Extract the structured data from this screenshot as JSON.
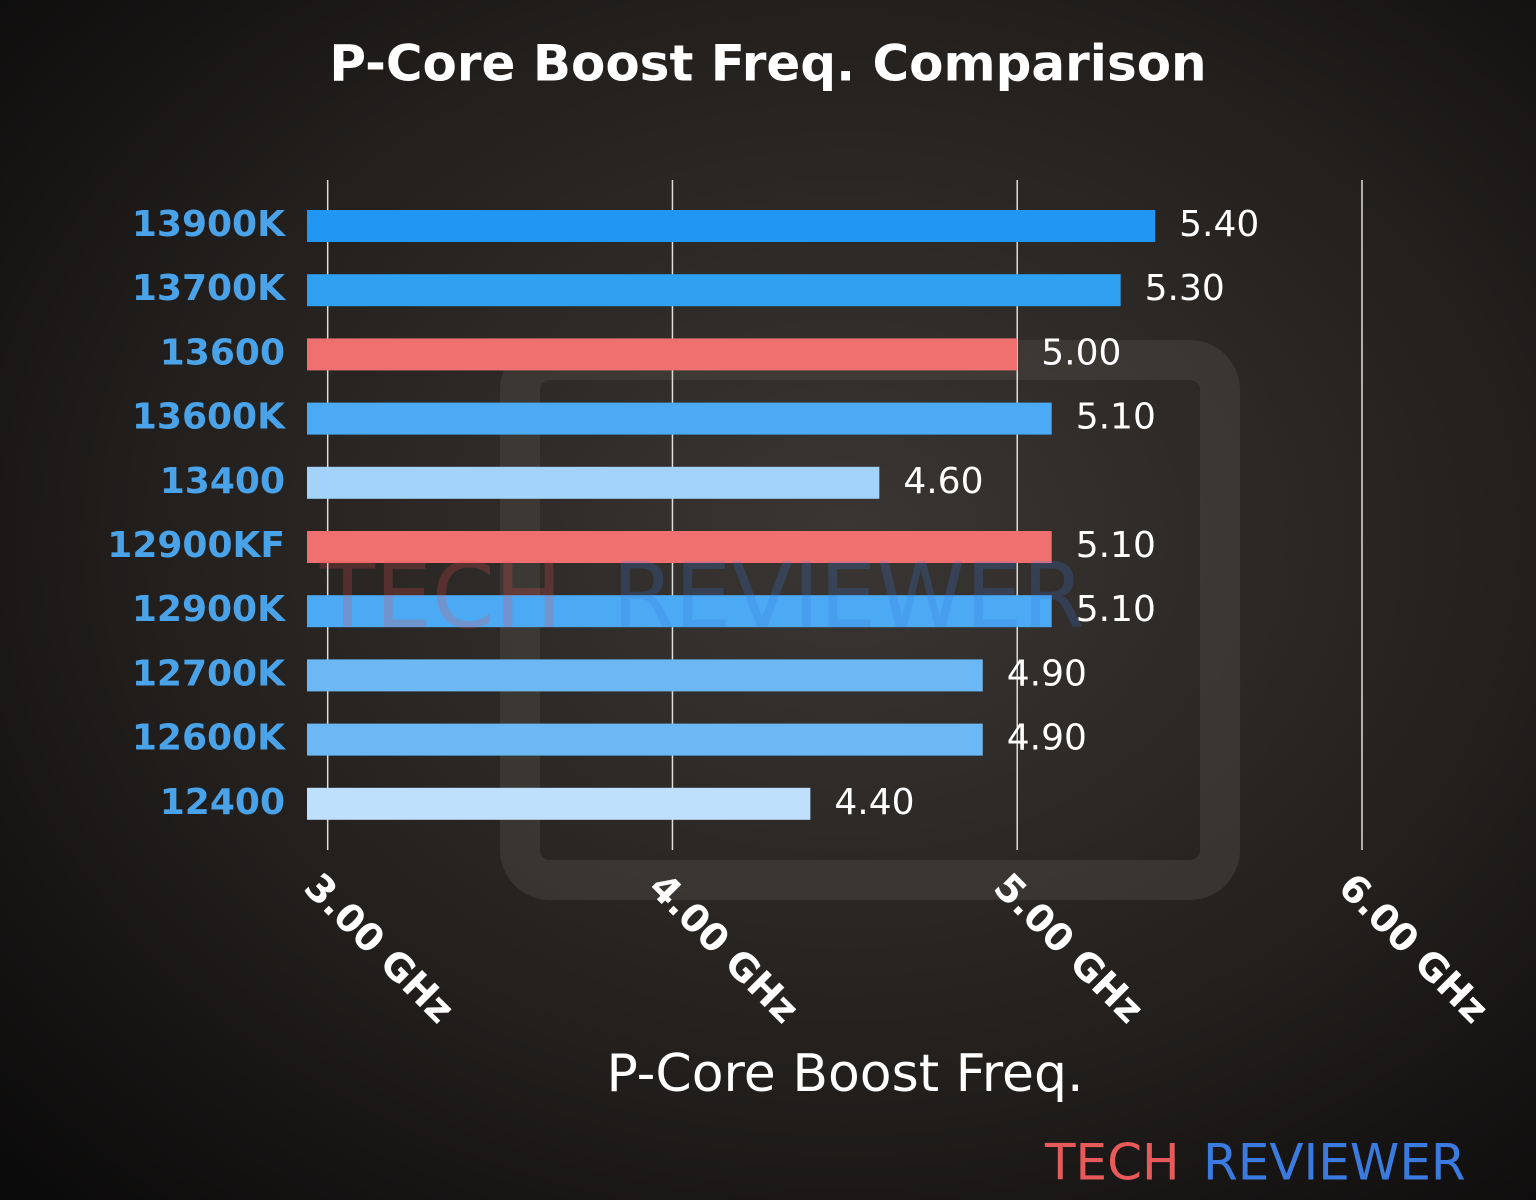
{
  "chart_data": {
    "type": "barh",
    "title": "P-Core Boost Freq. Comparison",
    "xlabel": "P-Core Boost Freq.",
    "categories": [
      "13900K",
      "13700K",
      "13600",
      "13600K",
      "13400",
      "12900KF",
      "12900K",
      "12700K",
      "12600K",
      "12400"
    ],
    "values": [
      5.4,
      5.3,
      5.0,
      5.1,
      4.6,
      5.1,
      5.1,
      4.9,
      4.9,
      4.4
    ],
    "value_labels": [
      "5.40",
      "5.30",
      "5.00",
      "5.10",
      "4.60",
      "5.10",
      "5.10",
      "4.90",
      "4.90",
      "4.40"
    ],
    "colors": [
      "#2196f3",
      "#30a0f0",
      "#f07070",
      "#4ca9f3",
      "#a3d3fa",
      "#f07070",
      "#4ca9f3",
      "#6cb8f5",
      "#6cb8f5",
      "#bfe0fc"
    ],
    "xlim": [
      2.94,
      6.0
    ],
    "xticks": [
      {
        "value": 3,
        "label": "3.00 GHz"
      },
      {
        "value": 4,
        "label": "4.00 GHz"
      },
      {
        "value": 5,
        "label": "5.00 GHz"
      },
      {
        "value": 6,
        "label": "6.00 GHz"
      }
    ],
    "grid": true
  },
  "logo": {
    "left": "TECH",
    "right": "REVIEWER"
  }
}
